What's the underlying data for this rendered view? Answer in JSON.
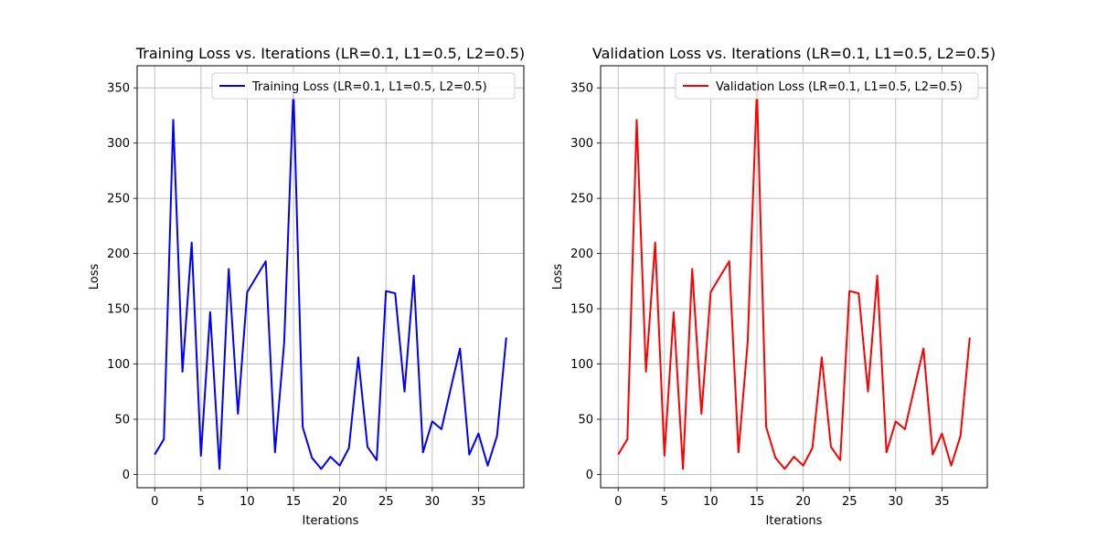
{
  "chart_data": [
    {
      "type": "line",
      "title": "Training Loss vs. Iterations (LR=0.1, L1=0.5, L2=0.5)",
      "xlabel": "Iterations",
      "ylabel": "Loss",
      "xlim": [
        -1.9,
        39.9
      ],
      "ylim": [
        -12,
        370
      ],
      "xticks": [
        0,
        5,
        10,
        15,
        20,
        25,
        30,
        35
      ],
      "yticks": [
        0,
        50,
        100,
        150,
        200,
        250,
        300,
        350
      ],
      "grid": true,
      "legend_position": "top-right",
      "x": [
        0,
        1,
        2,
        3,
        4,
        5,
        6,
        7,
        8,
        9,
        10,
        11,
        12,
        13,
        14,
        15,
        16,
        17,
        18,
        19,
        20,
        21,
        22,
        23,
        24,
        25,
        26,
        27,
        28,
        29,
        30,
        31,
        32,
        33,
        34,
        35,
        36,
        37,
        38
      ],
      "series": [
        {
          "name": "Training Loss (LR=0.1, L1=0.5, L2=0.5)",
          "color": "#0000ff",
          "values": [
            18,
            32,
            321,
            93,
            210,
            17,
            147,
            5,
            186,
            55,
            165,
            179,
            193,
            20,
            120,
            349,
            43,
            15,
            5,
            16,
            8,
            24,
            106,
            25,
            13,
            166,
            164,
            75,
            180,
            20,
            48,
            41,
            78,
            114,
            18,
            37,
            8,
            35,
            124
          ]
        }
      ]
    },
    {
      "type": "line",
      "title": "Validation Loss vs. Iterations (LR=0.1, L1=0.5, L2=0.5)",
      "xlabel": "Iterations",
      "ylabel": "Loss",
      "xlim": [
        -1.9,
        39.9
      ],
      "ylim": [
        -12,
        370
      ],
      "xticks": [
        0,
        5,
        10,
        15,
        20,
        25,
        30,
        35
      ],
      "yticks": [
        0,
        50,
        100,
        150,
        200,
        250,
        300,
        350
      ],
      "grid": true,
      "legend_position": "top-right",
      "x": [
        0,
        1,
        2,
        3,
        4,
        5,
        6,
        7,
        8,
        9,
        10,
        11,
        12,
        13,
        14,
        15,
        16,
        17,
        18,
        19,
        20,
        21,
        22,
        23,
        24,
        25,
        26,
        27,
        28,
        29,
        30,
        31,
        32,
        33,
        34,
        35,
        36,
        37,
        38
      ],
      "series": [
        {
          "name": "Validation Loss (LR=0.1, L1=0.5, L2=0.5)",
          "color": "#ff0000",
          "values": [
            18,
            32,
            321,
            93,
            210,
            17,
            147,
            5,
            186,
            55,
            165,
            179,
            193,
            20,
            120,
            349,
            43,
            15,
            5,
            16,
            8,
            24,
            106,
            25,
            13,
            166,
            164,
            75,
            180,
            20,
            48,
            41,
            78,
            114,
            18,
            37,
            8,
            35,
            124
          ]
        }
      ]
    }
  ]
}
